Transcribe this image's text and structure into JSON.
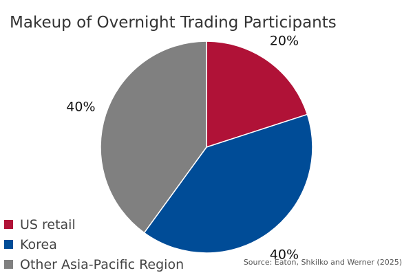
{
  "chart_data": {
    "type": "pie",
    "title": "Makeup of Overnight Trading Participants",
    "slices": [
      {
        "label": "US retail",
        "value": 20,
        "data_label": "20%",
        "color": "#B01237"
      },
      {
        "label": "Korea",
        "value": 40,
        "data_label": "40%",
        "color": "#004C97"
      },
      {
        "label": "Other Asia-Pacific Region",
        "value": 40,
        "data_label": "40%",
        "color": "#808080"
      }
    ],
    "legend_position": "bottom-left",
    "source": "Source: Eaton, Shkilko and Werner (2025)"
  }
}
